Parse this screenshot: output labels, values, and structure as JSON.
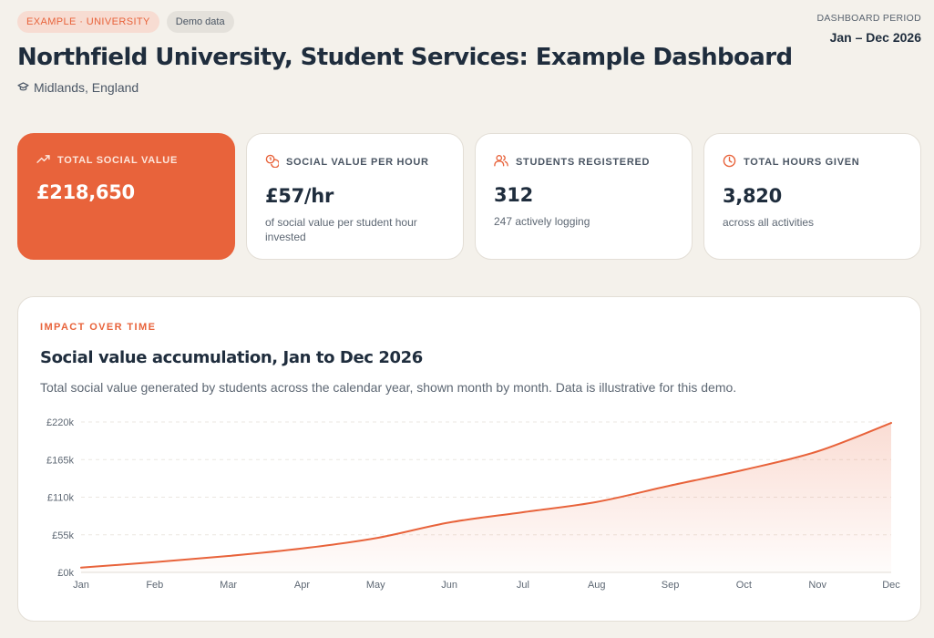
{
  "header": {
    "badge_primary": "EXAMPLE · UNIVERSITY",
    "badge_secondary": "Demo data",
    "title": "Northfield University, Student Services: Example Dashboard",
    "location": "Midlands, England",
    "location_icon": "graduation-cap-icon",
    "period_label": "DASHBOARD PERIOD",
    "period_value": "Jan – Dec 2026"
  },
  "cards": [
    {
      "label": "TOTAL SOCIAL VALUE",
      "value": "£218,650",
      "sub": "",
      "icon": "trending-up-icon"
    },
    {
      "label": "SOCIAL VALUE PER HOUR",
      "value": "£57/hr",
      "sub": "of social value per student hour invested",
      "icon": "coins-icon"
    },
    {
      "label": "STUDENTS REGISTERED",
      "value": "312",
      "sub": "247 actively logging",
      "icon": "users-icon"
    },
    {
      "label": "TOTAL HOURS GIVEN",
      "value": "3,820",
      "sub": "across all activities",
      "icon": "clock-icon"
    }
  ],
  "panel": {
    "eyebrow": "IMPACT OVER TIME",
    "title": "Social value accumulation, Jan to Dec 2026",
    "description": "Total social value generated by students across the calendar year, shown month by month. Data is illustrative for this demo."
  },
  "colors": {
    "accent": "#e8633b",
    "background": "#f4f1eb",
    "text": "#1f2d3d",
    "muted": "#5d6773"
  },
  "chart_data": {
    "type": "area",
    "categories": [
      "Jan",
      "Feb",
      "Mar",
      "Apr",
      "May",
      "Jun",
      "Jul",
      "Aug",
      "Sep",
      "Oct",
      "Nov",
      "Dec"
    ],
    "values": [
      7000,
      15000,
      24000,
      35000,
      50000,
      73000,
      88000,
      103000,
      127000,
      150000,
      177000,
      218650
    ],
    "yticks": [
      0,
      55000,
      110000,
      165000,
      220000
    ],
    "ytick_labels": [
      "£0k",
      "£55k",
      "£110k",
      "£165k",
      "£220k"
    ],
    "ylim": [
      0,
      220000
    ],
    "grid": true,
    "legend": "none",
    "color": "#e8633b"
  }
}
